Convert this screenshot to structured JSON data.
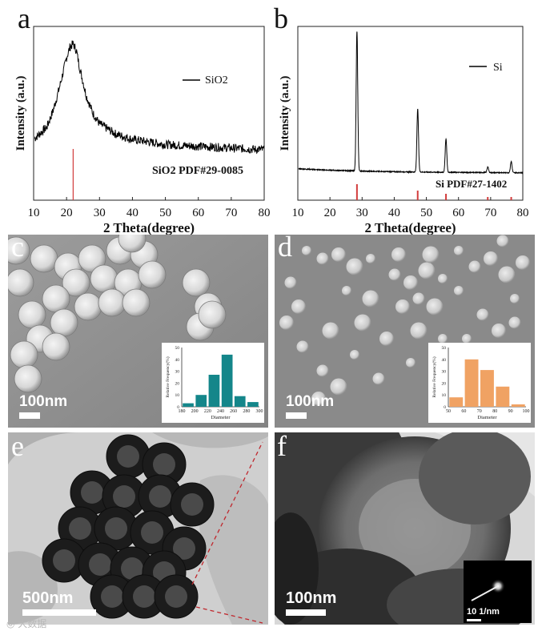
{
  "panel_letters": {
    "a": "a",
    "b": "b",
    "c": "c",
    "d": "d",
    "e": "e",
    "f": "f"
  },
  "chart_data": [
    {
      "type": "line",
      "panel": "a",
      "xlabel": "2 Theta(degree)",
      "ylabel": "Intensity (a.u.)",
      "xlim": [
        10,
        80
      ],
      "xticks": [
        10,
        20,
        30,
        40,
        50,
        60,
        70,
        80
      ],
      "legend": {
        "label": "SiO2",
        "placement": "top-right"
      },
      "series": [
        {
          "name": "SiO2",
          "x": [
            10,
            14,
            16,
            18,
            20,
            21,
            22,
            23,
            24,
            26,
            28,
            30,
            35,
            40,
            50,
            60,
            70,
            80
          ],
          "y": [
            0.35,
            0.42,
            0.52,
            0.66,
            0.82,
            0.88,
            0.9,
            0.86,
            0.76,
            0.6,
            0.5,
            0.44,
            0.38,
            0.35,
            0.32,
            0.31,
            0.3,
            0.29
          ]
        }
      ],
      "reference": {
        "label": "SiO2  PDF#29-0085",
        "positions": [
          22
        ]
      },
      "grid": false
    },
    {
      "type": "line",
      "panel": "b",
      "xlabel": "2 Theta(degree)",
      "ylabel": "Intensity (a.u.)",
      "xlim": [
        10,
        80
      ],
      "xticks": [
        10,
        20,
        30,
        40,
        50,
        60,
        70,
        80
      ],
      "legend": {
        "label": "Si",
        "placement": "top-right"
      },
      "peaks": [
        {
          "x": 28.4,
          "y": 1.0
        },
        {
          "x": 47.3,
          "y": 0.45
        },
        {
          "x": 56.1,
          "y": 0.24
        },
        {
          "x": 69.1,
          "y": 0.04
        },
        {
          "x": 76.4,
          "y": 0.08
        }
      ],
      "baseline": 0.03,
      "reference": {
        "label": "Si PDF#27-1402",
        "positions": [
          28.4,
          47.3,
          56.1,
          69.1,
          76.4
        ]
      },
      "grid": false
    },
    {
      "type": "bar",
      "panel": "c-inset",
      "xlabel": "Diameter",
      "ylabel": "Relative Frequency(%)",
      "categories": [
        190,
        210,
        230,
        250,
        270,
        290
      ],
      "values": [
        3,
        10,
        27,
        44,
        9,
        4
      ],
      "xticks": [
        180,
        200,
        220,
        240,
        260,
        280,
        300
      ],
      "yticks": [
        0,
        10,
        20,
        30,
        40,
        50
      ],
      "ylim": [
        0,
        50
      ],
      "xlim": [
        180,
        300
      ],
      "color": "#14868a"
    },
    {
      "type": "bar",
      "panel": "d-inset",
      "xlabel": "Diameter",
      "ylabel": "Relative Frequency(%)",
      "categories": [
        55,
        65,
        75,
        85,
        95
      ],
      "values": [
        8,
        40,
        31,
        17,
        2
      ],
      "xticks": [
        50,
        60,
        70,
        80,
        90,
        100
      ],
      "yticks": [
        0,
        10,
        20,
        30,
        40,
        50
      ],
      "ylim": [
        0,
        50
      ],
      "xlim": [
        50,
        100
      ],
      "color": "#f0a263"
    }
  ],
  "scale_bars": {
    "c": "100nm",
    "d": "100nm",
    "e": "500nm",
    "f": "100nm",
    "f_inset": "10 1/nm"
  },
  "watermark": "大数据"
}
